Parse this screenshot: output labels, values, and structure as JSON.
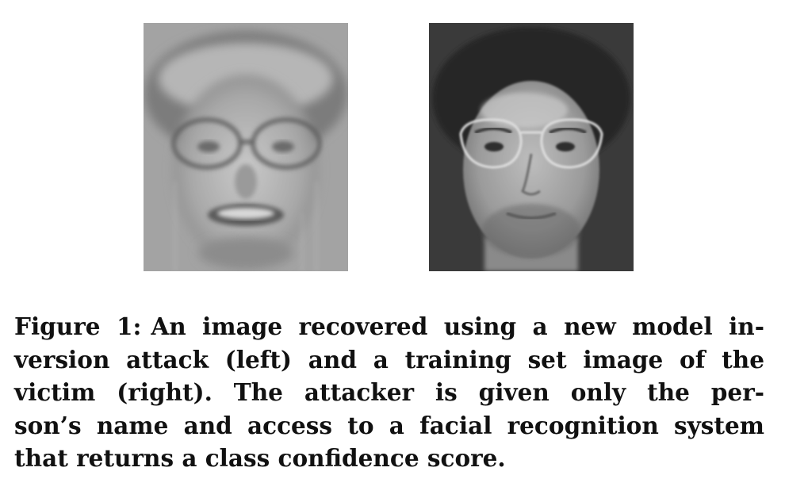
{
  "figure": {
    "images": [
      {
        "name": "recovered-image",
        "position": "left"
      },
      {
        "name": "training-set-image",
        "position": "right"
      }
    ],
    "caption": {
      "label": "Figure 1:",
      "lines": [
        "An image recovered using a new model in-",
        "version attack (left) and a training set image of the",
        "victim (right).  The attacker is given only the per-",
        "son’s name and access to a facial recognition system",
        "that returns a class confidence score."
      ]
    }
  },
  "colors": {
    "text": "#111111",
    "background": "#ffffff",
    "left_panel_bg": "#9a9a9a",
    "right_panel_bg": "#3c3c3c"
  }
}
